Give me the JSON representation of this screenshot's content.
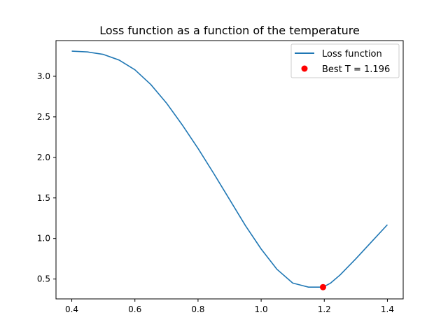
{
  "chart_data": {
    "type": "line",
    "title": "Loss function as a function of the temperature",
    "xlabel": "",
    "ylabel": "",
    "xlim": [
      0.35,
      1.45
    ],
    "ylim": [
      0.255,
      3.44
    ],
    "xticks": [
      0.4,
      0.6,
      0.8,
      1.0,
      1.2,
      1.4
    ],
    "xtick_labels": [
      "0.4",
      "0.6",
      "0.8",
      "1.0",
      "1.2",
      "1.4"
    ],
    "yticks": [
      0.5,
      1.0,
      1.5,
      2.0,
      2.5,
      3.0
    ],
    "ytick_labels": [
      "0.5",
      "1.0",
      "1.5",
      "2.0",
      "2.5",
      "3.0"
    ],
    "grid": false,
    "legend_position": "top-right",
    "series": [
      {
        "name": "Loss function",
        "color": "#1f77b4",
        "x": [
          0.4,
          0.45,
          0.5,
          0.55,
          0.6,
          0.65,
          0.7,
          0.75,
          0.8,
          0.85,
          0.9,
          0.95,
          1.0,
          1.05,
          1.1,
          1.13,
          1.15,
          1.17,
          1.196,
          1.22,
          1.25,
          1.3,
          1.35,
          1.4
        ],
        "y": [
          3.31,
          3.3,
          3.27,
          3.2,
          3.08,
          2.9,
          2.67,
          2.4,
          2.11,
          1.8,
          1.48,
          1.16,
          0.87,
          0.62,
          0.45,
          0.42,
          0.4,
          0.4,
          0.4,
          0.45,
          0.55,
          0.75,
          0.96,
          1.17
        ]
      }
    ],
    "points": [
      {
        "name": "Best T = 1.196",
        "x": 1.196,
        "y": 0.4,
        "color": "#ff0000"
      }
    ]
  }
}
